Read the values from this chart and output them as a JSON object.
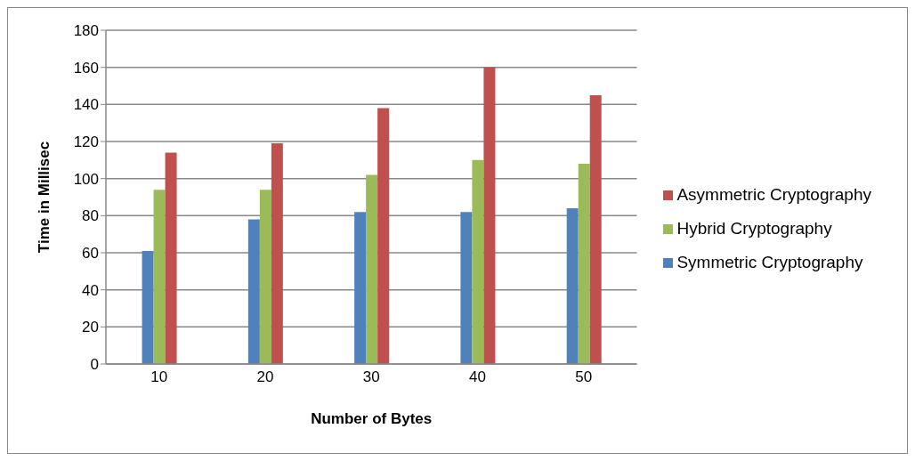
{
  "chart_data": {
    "type": "bar",
    "xlabel": "Number of Bytes",
    "ylabel": "Time in Millisec",
    "categories": [
      "10",
      "20",
      "30",
      "40",
      "50"
    ],
    "series": [
      {
        "name": "Symmetric Cryptography",
        "color": "#4f81bd",
        "values": [
          61,
          78,
          82,
          82,
          84
        ]
      },
      {
        "name": "Hybrid Cryptography",
        "color": "#9bbb59",
        "values": [
          94,
          94,
          102,
          110,
          108
        ]
      },
      {
        "name": "Asymmetric Cryptography",
        "color": "#c0504d",
        "values": [
          114,
          119,
          138,
          160,
          145
        ]
      }
    ],
    "ylim": [
      0,
      180
    ],
    "yticks": [
      0,
      20,
      40,
      60,
      80,
      100,
      120,
      140,
      160,
      180
    ],
    "grid": "y",
    "legend": "right"
  }
}
